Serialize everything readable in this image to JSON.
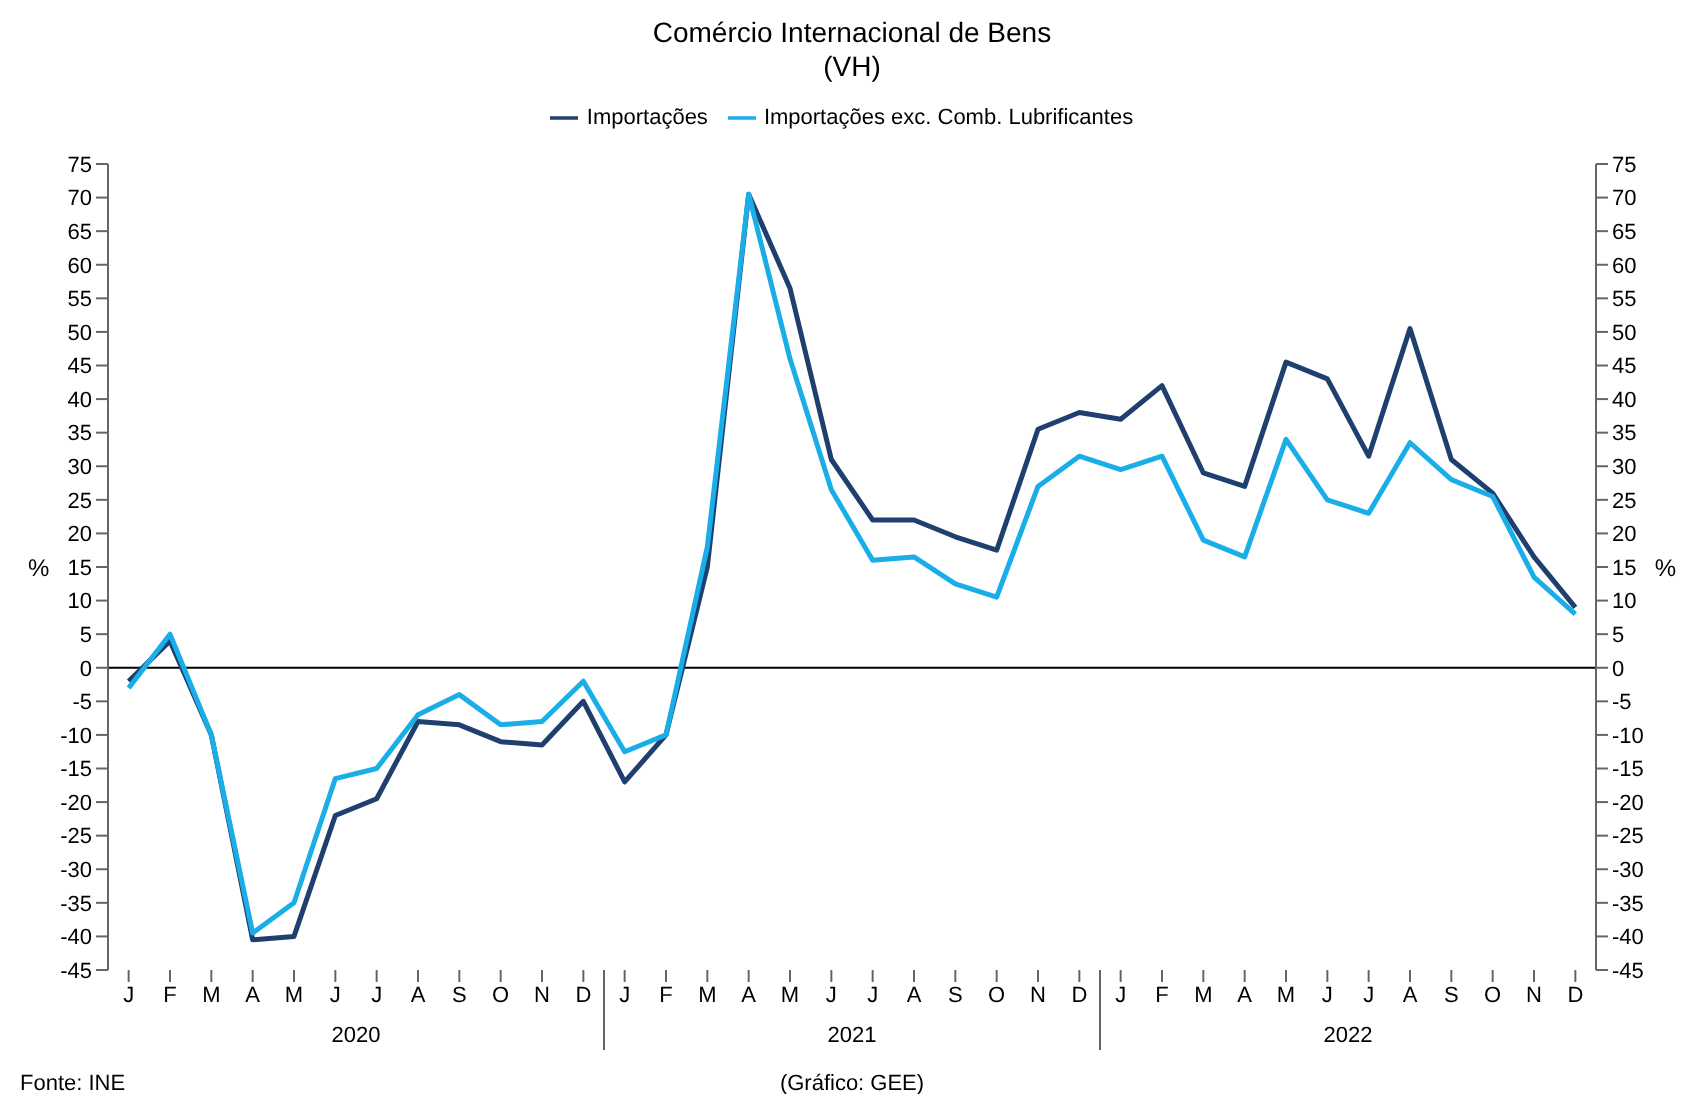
{
  "chart_data": {
    "type": "line",
    "title": "Comércio Internacional de Bens",
    "subtitle": "(VH)",
    "ylabel": "%",
    "y2label": "%",
    "categories": [
      "J",
      "F",
      "M",
      "A",
      "M",
      "J",
      "J",
      "A",
      "S",
      "O",
      "N",
      "D",
      "J",
      "F",
      "M",
      "A",
      "M",
      "J",
      "J",
      "A",
      "S",
      "O",
      "N",
      "D",
      "J",
      "F",
      "M",
      "A",
      "M",
      "J",
      "J",
      "A",
      "S",
      "O",
      "N",
      "D"
    ],
    "series": [
      {
        "name": "Importações",
        "color": "#1f3f6e",
        "values": [
          -2,
          4,
          -10,
          -40.5,
          -40,
          -22,
          -19.5,
          -8,
          -8.5,
          -11,
          -11.5,
          -5,
          -17,
          -10,
          15,
          70.5,
          56.5,
          31,
          22,
          22,
          19.5,
          17.5,
          35.5,
          38,
          37,
          42,
          29,
          27,
          45.5,
          43,
          31.5,
          50.5,
          31,
          26,
          16.5,
          9
        ]
      },
      {
        "name": "Importações exc. Comb. Lubrificantes",
        "color": "#1aaee8",
        "values": [
          -3,
          5,
          -10,
          -39.5,
          -35,
          -16.5,
          -15,
          -7,
          -4,
          -8.5,
          -8,
          -2,
          -12.5,
          -10,
          18,
          70.5,
          46,
          26.5,
          16,
          16.5,
          12.5,
          10.5,
          27,
          31.5,
          29.5,
          31.5,
          19,
          16.5,
          34,
          25,
          23,
          33.5,
          28,
          25.5,
          13.5,
          8
        ]
      }
    ],
    "ylim": [
      -45,
      75
    ],
    "yticks": [
      -45,
      -40,
      -35,
      -30,
      -25,
      -20,
      -15,
      -10,
      -5,
      0,
      5,
      10,
      15,
      20,
      25,
      30,
      35,
      40,
      45,
      50,
      55,
      60,
      65,
      70,
      75
    ],
    "y2lim": [
      -45,
      75
    ],
    "y2ticks": [
      -45,
      -40,
      -35,
      -30,
      -25,
      -20,
      -15,
      -10,
      -5,
      0,
      5,
      10,
      15,
      20,
      25,
      30,
      35,
      40,
      45,
      50,
      55,
      60,
      65,
      70,
      75
    ],
    "ref_lines": [
      {
        "axis": "y",
        "value": 0,
        "color": "#000000"
      }
    ],
    "legend": "top",
    "marker": "none",
    "line_style": "solid",
    "annotations": [
      "2020",
      "2021",
      "2022",
      "Fonte: INE",
      "(Gráfico: GEE)"
    ]
  }
}
